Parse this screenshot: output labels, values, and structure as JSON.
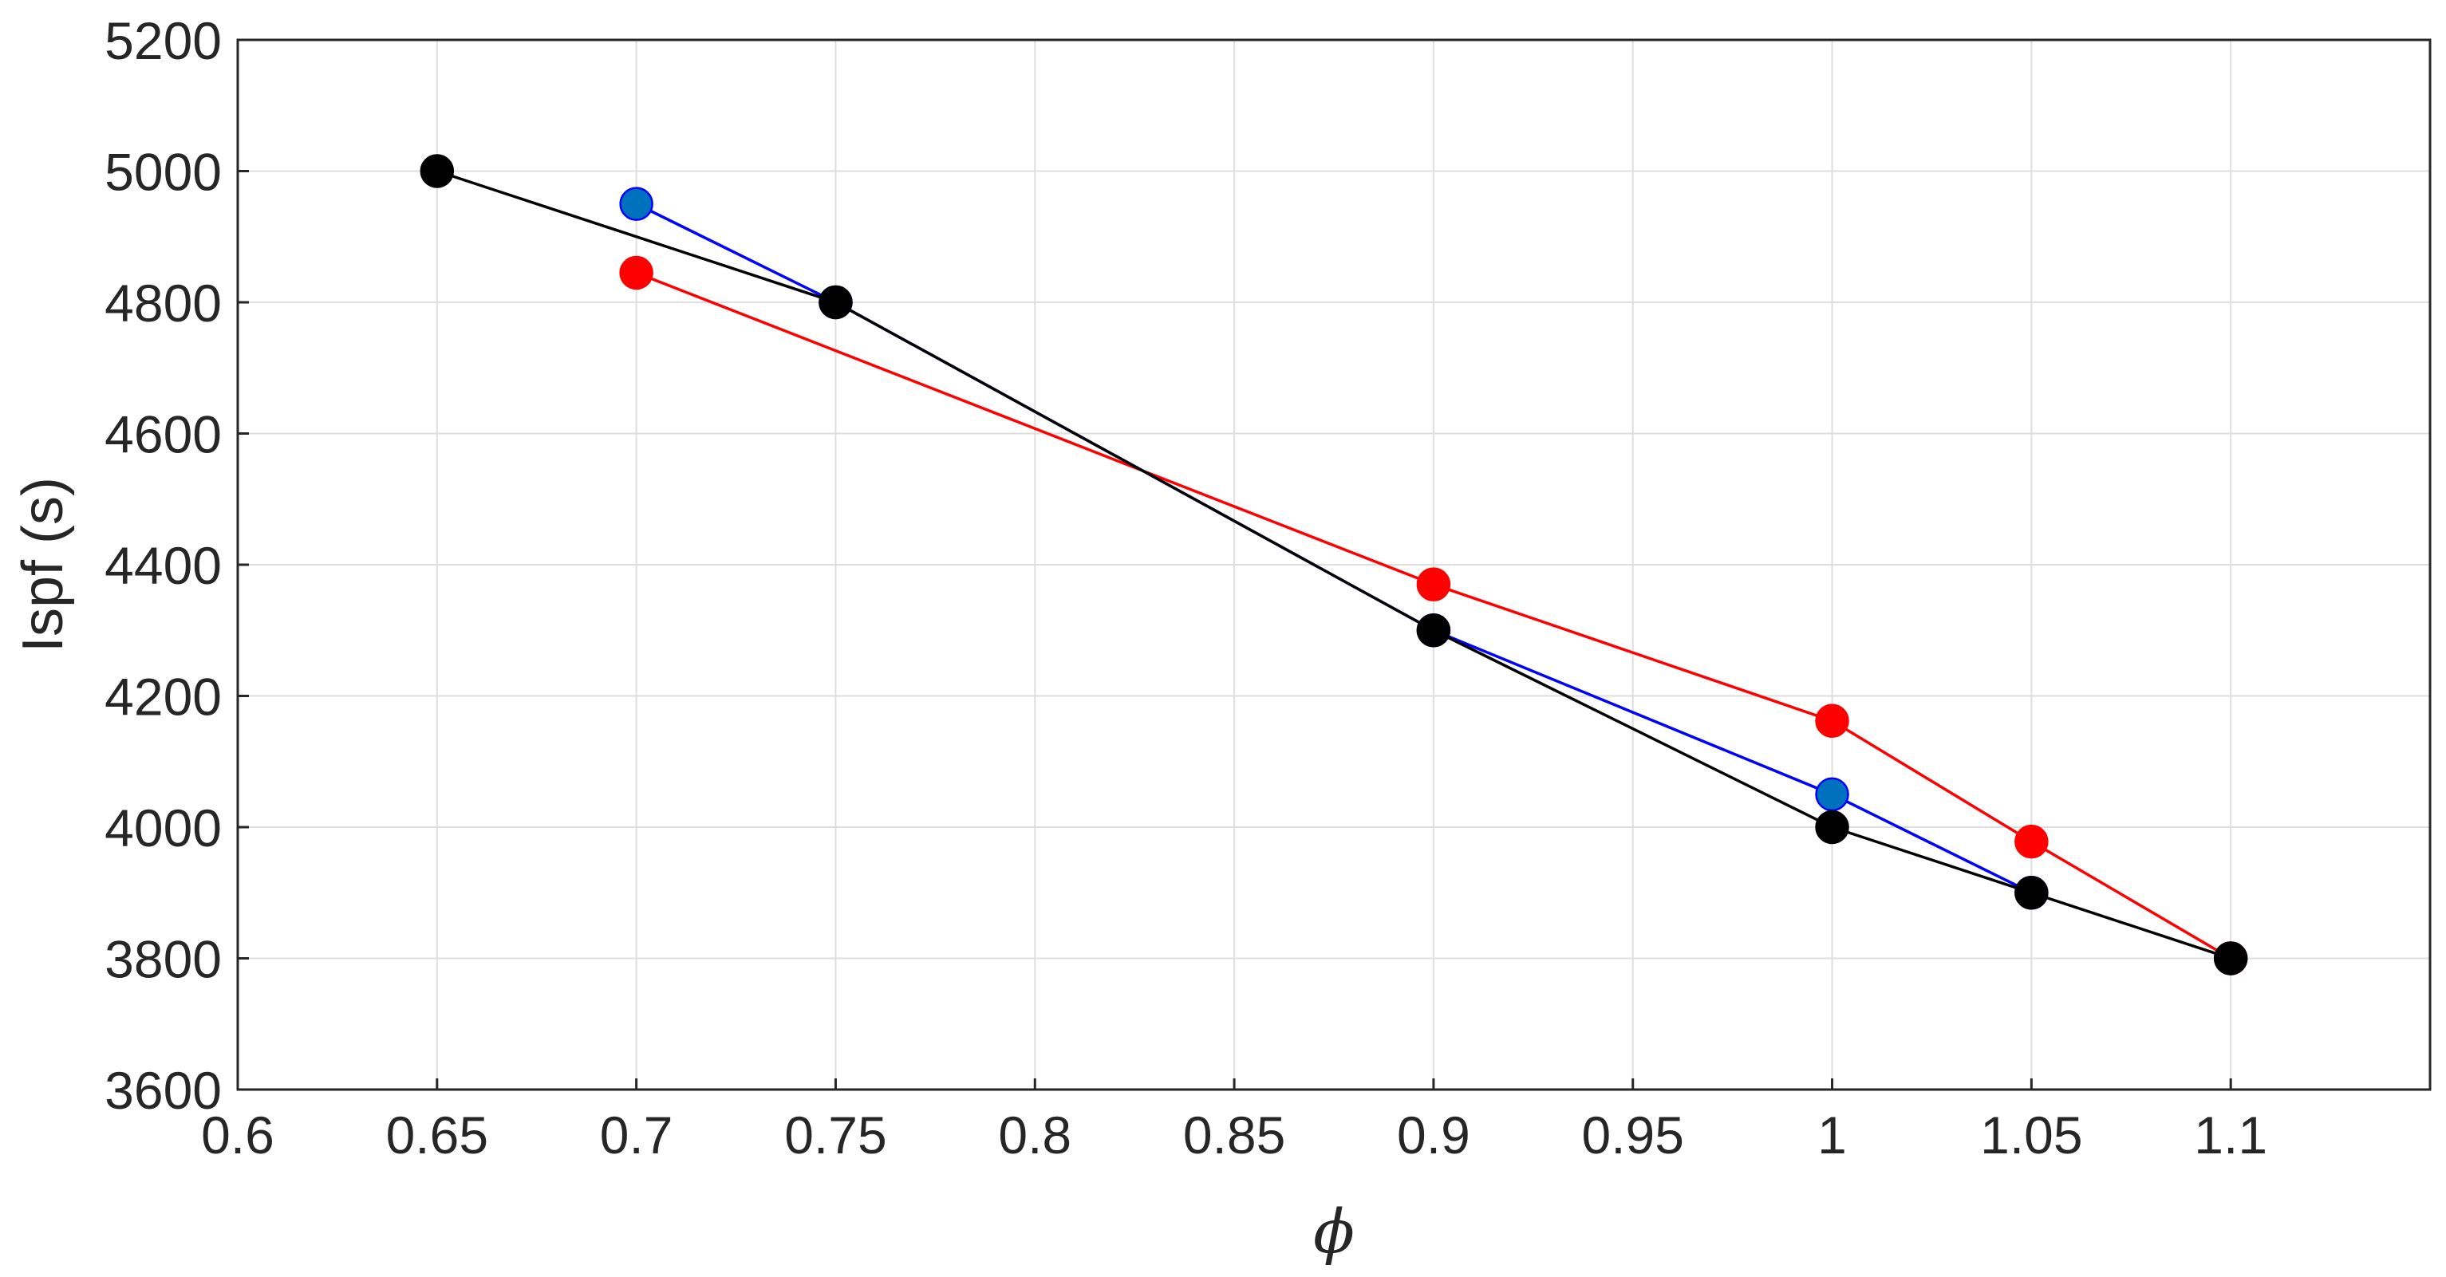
{
  "chart_data": {
    "type": "line",
    "title": "",
    "xlabel": "ϕ",
    "ylabel": "Ispf (s)",
    "xlim": [
      0.6,
      1.15
    ],
    "ylim": [
      3600,
      5200
    ],
    "x_ticks": [
      0.6,
      0.65,
      0.7,
      0.75,
      0.8,
      0.85,
      0.9,
      0.95,
      1,
      1.05,
      1.1
    ],
    "x_tick_labels": [
      "0.6",
      "0.65",
      "0.7",
      "0.75",
      "0.8",
      "0.85",
      "0.9",
      "0.95",
      "1",
      "1.05",
      "1.1"
    ],
    "y_ticks": [
      3600,
      3800,
      4000,
      4200,
      4400,
      4600,
      4800,
      5000,
      5200
    ],
    "y_tick_labels": [
      "3600",
      "3800",
      "4000",
      "4200",
      "4400",
      "4600",
      "4800",
      "5000",
      "5200"
    ],
    "grid": true,
    "series": [
      {
        "line_color": "#ff0000",
        "marker_color": "#ff0000",
        "marker_edge": "#ff0000",
        "x": [
          0.7,
          0.9,
          1.0,
          1.05,
          1.1
        ],
        "y": [
          4845,
          4370,
          4162,
          3978,
          3800
        ]
      },
      {
        "line_color": "#0000ff",
        "marker_color": "#0072bd",
        "marker_edge": "#0000ff",
        "x": [
          0.7,
          0.75,
          0.9,
          1.0,
          1.05
        ],
        "y": [
          4950,
          4800,
          4300,
          4050,
          3900
        ]
      },
      {
        "line_color": "#000000",
        "marker_color": "#000000",
        "marker_edge": "#000000",
        "x": [
          0.65,
          0.75,
          0.9,
          1.0,
          1.05,
          1.1
        ],
        "y": [
          5000,
          4800,
          4300,
          4000,
          3900,
          3800
        ]
      }
    ]
  }
}
